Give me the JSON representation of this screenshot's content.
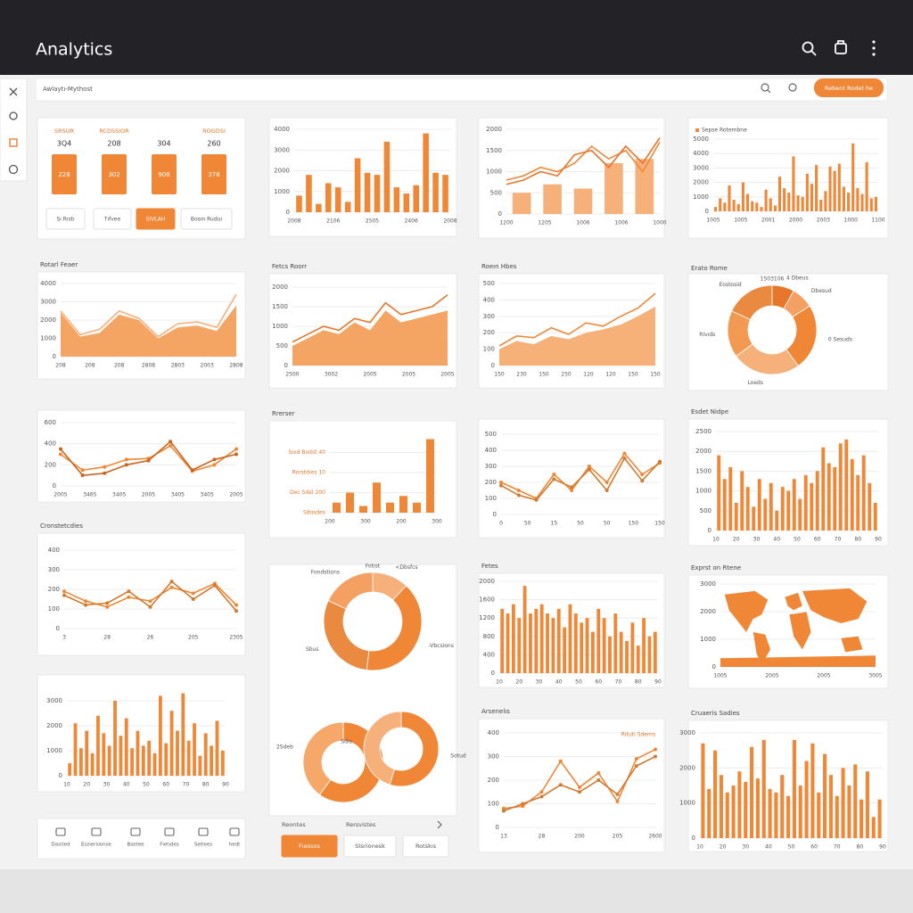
{
  "header": {
    "title": "Analytics"
  },
  "toolbar": {
    "label": "Awlaytı-Mythost",
    "button": "Rebent Rodet he"
  },
  "kpi": {
    "tiles": [
      {
        "label": "SRSUR",
        "value": "3Q4",
        "tile": "228"
      },
      {
        "label": "RCDSSIOR",
        "value": "208",
        "tile": "302"
      },
      {
        "value": "304",
        "tile": "908"
      },
      {
        "label": "ROGDSI",
        "value": "260",
        "tile": "378"
      }
    ],
    "buttons": [
      "Sı Rıstı",
      "Tıfvee",
      "SIVLAH",
      "Bosın Ruduı"
    ]
  },
  "charts": [
    {
      "type": "bar",
      "ylim": [
        0,
        4000
      ],
      "yticks": [
        0,
        1000,
        2000,
        3000,
        4000
      ],
      "xlabels": [
        "2008",
        "2106",
        "2505",
        "2406",
        "2008"
      ],
      "series": [
        {
          "kind": "bar",
          "color": "#ef8737",
          "values": [
            800,
            1800,
            400,
            1400,
            1200,
            500,
            2600,
            1900,
            1800,
            3400,
            1200,
            900,
            1300,
            3800,
            1900,
            1800
          ]
        }
      ]
    },
    {
      "type": "combo",
      "ylim": [
        0,
        2000
      ],
      "yticks": [
        0,
        500,
        1000,
        1500,
        2000
      ],
      "xlabels": [
        "1200",
        "1205",
        "1006",
        "1006",
        "1000"
      ],
      "series": [
        {
          "kind": "bar",
          "color": "#f6b07a",
          "values": [
            500,
            700,
            600,
            1200,
            1300
          ]
        },
        {
          "kind": "line",
          "color": "#ef8737",
          "values": [
            800,
            900,
            1100,
            1000,
            1200,
            1600,
            1300,
            1500,
            1000,
            1700
          ]
        },
        {
          "kind": "line",
          "color": "#e5762a",
          "values": [
            700,
            800,
            1000,
            900,
            1400,
            1500,
            1100,
            1600,
            1200,
            1800
          ]
        }
      ]
    },
    {
      "type": "bar",
      "legend": "Sepse Rotembne",
      "ylim": [
        0,
        5000
      ],
      "yticks": [
        0,
        1000,
        2000,
        3000,
        4000,
        5000
      ],
      "xlabels": [
        "1005",
        "1005",
        "2001",
        "2000",
        "2003",
        "1000",
        "1100"
      ],
      "series": [
        {
          "kind": "bar",
          "color": "#ef8737",
          "values": [
            300,
            900,
            600,
            1800,
            800,
            500,
            2000,
            1200,
            700,
            600,
            300,
            1500,
            900,
            400,
            2400,
            1600,
            1300,
            3800,
            1100,
            1000,
            2600,
            1900,
            3200,
            800,
            1400,
            3100,
            2800,
            3300,
            1700,
            1300,
            4700,
            1600,
            1200,
            3400,
            900,
            1000
          ]
        }
      ]
    },
    {
      "type": "area",
      "title": "Rotarl Feaer",
      "ylim": [
        0,
        4000
      ],
      "yticks": [
        0,
        1000,
        2000,
        3000,
        4000
      ],
      "xlabels": [
        "208",
        "208",
        "208",
        "2808",
        "2803",
        "2003",
        "2808"
      ],
      "series": [
        {
          "kind": "area",
          "color": "#f39a52",
          "values": [
            2400,
            1100,
            1300,
            2300,
            2000,
            1000,
            1600,
            1700,
            1400,
            2800
          ]
        },
        {
          "kind": "line",
          "color": "#f6b07a",
          "values": [
            2500,
            1200,
            1500,
            2500,
            2100,
            1100,
            1800,
            1900,
            1600,
            3400
          ]
        }
      ]
    },
    {
      "type": "area",
      "title": "Fetcs Roorr",
      "ylim": [
        0,
        2000
      ],
      "yticks": [
        0,
        500,
        1000,
        1500,
        2000
      ],
      "xlabels": [
        "2500",
        "3002",
        "2005",
        "2005",
        "2005"
      ],
      "series": [
        {
          "kind": "area",
          "color": "#f39a52",
          "values": [
            500,
            700,
            900,
            800,
            1100,
            900,
            1400,
            1100,
            1200,
            1300,
            1400
          ]
        },
        {
          "kind": "line",
          "color": "#e5762a",
          "values": [
            600,
            800,
            1000,
            900,
            1200,
            1100,
            1600,
            1300,
            1400,
            1500,
            1800
          ]
        }
      ]
    },
    {
      "type": "area",
      "title": "Roeın Hbes",
      "ylim": [
        0,
        500
      ],
      "yticks": [
        0,
        100,
        200,
        300,
        400,
        500
      ],
      "xlabels": [
        "150",
        "230",
        "150",
        "250",
        "120",
        "120",
        "150",
        "150"
      ],
      "series": [
        {
          "kind": "area",
          "color": "#f5a86a",
          "values": [
            100,
            150,
            130,
            180,
            160,
            200,
            220,
            250,
            300,
            360
          ]
        },
        {
          "kind": "line",
          "color": "#ef8737",
          "values": [
            120,
            180,
            170,
            230,
            190,
            260,
            240,
            300,
            350,
            440
          ]
        }
      ]
    },
    {
      "type": "line",
      "ylim": [
        0,
        600
      ],
      "yticks": [
        0,
        200,
        400,
        600
      ],
      "xlabels": [
        "2005",
        "3465",
        "3405",
        "2005",
        "3405",
        "3405",
        "2005"
      ],
      "series": [
        {
          "kind": "line",
          "markers": true,
          "color": "#ef8737",
          "values": [
            300,
            150,
            180,
            250,
            260,
            380,
            140,
            200,
            350
          ]
        },
        {
          "kind": "line",
          "markers": true,
          "color": "#c8661f",
          "values": [
            350,
            100,
            120,
            200,
            240,
            420,
            150,
            250,
            300
          ]
        }
      ]
    },
    {
      "type": "line",
      "ylim": [
        0,
        500
      ],
      "yticks": [
        0,
        100,
        200,
        300,
        400,
        500
      ],
      "xlabels": [
        "0",
        "50",
        "15",
        "50",
        "50",
        "150",
        "150"
      ],
      "series": [
        {
          "kind": "line",
          "markers": true,
          "color": "#ef8737",
          "values": [
            200,
            150,
            100,
            250,
            150,
            300,
            200,
            380,
            250,
            320
          ]
        },
        {
          "kind": "line",
          "markers": true,
          "color": "#d27a30",
          "values": [
            180,
            120,
            90,
            220,
            170,
            280,
            150,
            350,
            210,
            330
          ]
        }
      ]
    },
    {
      "type": "bar",
      "title": "Rrerser",
      "ylim": [
        0,
        2400
      ],
      "yticks": [
        {
          "value": 0,
          "label": "Sdosdes"
        },
        {
          "value": 600,
          "label": "Dec Sdst 200"
        },
        {
          "value": 1200,
          "label": "Rorstdıes 10"
        },
        {
          "value": 1800,
          "label": "Soıd Bodst 40"
        }
      ],
      "xlabels": [
        "200",
        "300",
        "200",
        "300"
      ],
      "series": [
        {
          "kind": "bar",
          "color": "#ef8737",
          "values": [
            300,
            600,
            200,
            900,
            300,
            500,
            300,
            2200
          ]
        }
      ]
    },
    {
      "type": "bar",
      "title": "Fetes",
      "ylim": [
        0,
        2000
      ],
      "yticks": [
        0,
        400,
        800,
        1200,
        1600,
        2000
      ],
      "xlabels": [
        "10",
        "20",
        "30",
        "40",
        "50",
        "60",
        "70",
        "80",
        "90"
      ],
      "series": [
        {
          "kind": "bar",
          "color": "#ef8737",
          "values": [
            1400,
            1300,
            1500,
            1200,
            1900,
            1300,
            1400,
            1500,
            1300,
            1200,
            1400,
            1000,
            1500,
            1300,
            1100,
            1200,
            900,
            1400,
            1200,
            800,
            1300,
            900,
            700,
            1100,
            600,
            1200,
            800,
            900
          ]
        }
      ]
    },
    {
      "type": "line",
      "title": "Arsenelıs",
      "annotation": "Rituti Sdems",
      "ylim": [
        0,
        400
      ],
      "yticks": [
        0,
        100,
        200,
        300,
        400
      ],
      "xlabels": [
        "13",
        "28",
        "200",
        "205",
        "2600"
      ],
      "series": [
        {
          "kind": "line",
          "markers": true,
          "color": "#ef8737",
          "values": [
            80,
            90,
            150,
            280,
            170,
            230,
            110,
            290,
            330
          ]
        },
        {
          "kind": "line",
          "markers": true,
          "color": "#d27a30",
          "values": [
            70,
            100,
            130,
            180,
            150,
            200,
            140,
            260,
            300
          ]
        }
      ]
    },
    {
      "type": "bar",
      "title": "Esdet Nidpe",
      "ylim": [
        0,
        2500
      ],
      "yticks": [
        0,
        500,
        1000,
        1500,
        2000,
        2500
      ],
      "xlabels": [
        "10",
        "20",
        "30",
        "40",
        "50",
        "60",
        "70",
        "80",
        "90"
      ],
      "series": [
        {
          "kind": "bar",
          "color": "#ef8737",
          "values": [
            1900,
            1300,
            1600,
            700,
            1500,
            1100,
            600,
            1300,
            800,
            1200,
            500,
            1100,
            1000,
            1300,
            800,
            1400,
            1200,
            1500,
            2100,
            1700,
            1600,
            2200,
            2300,
            1800,
            1400,
            1900,
            1200,
            700
          ]
        }
      ]
    },
    {
      "type": "line",
      "title": "Cronstetcdies",
      "ylim": [
        0,
        400
      ],
      "yticks": [
        0,
        100,
        200,
        300,
        400
      ],
      "xlabels": [
        "3",
        "28",
        "26",
        "205",
        "2305"
      ],
      "series": [
        {
          "kind": "line",
          "markers": true,
          "color": "#ef8737",
          "values": [
            190,
            140,
            110,
            160,
            140,
            210,
            180,
            230,
            120
          ]
        },
        {
          "kind": "line",
          "markers": true,
          "color": "#d27a30",
          "values": [
            170,
            120,
            130,
            190,
            110,
            240,
            150,
            220,
            90
          ]
        }
      ]
    },
    {
      "type": "bar",
      "ylim": [
        0,
        3500
      ],
      "yticks": [
        0,
        1000,
        2000,
        3000
      ],
      "xlabels": [
        "10",
        "20",
        "30",
        "40",
        "50",
        "60",
        "70",
        "80",
        "90"
      ],
      "series": [
        {
          "kind": "bar",
          "color": "#ef8737",
          "values": [
            500,
            2100,
            1100,
            1800,
            900,
            2400,
            1700,
            1200,
            3000,
            1600,
            2300,
            1100,
            1800,
            1200,
            1400,
            900,
            3200,
            1300,
            2600,
            1800,
            3300,
            1400,
            2100,
            800,
            1700,
            1200,
            2200,
            1000
          ]
        }
      ]
    },
    {
      "type": "bar",
      "title": "Cruaeris Sadies",
      "ylim": [
        0,
        3000
      ],
      "yticks": [
        0,
        1000,
        2000,
        3000
      ],
      "xlabels": [
        "10",
        "20",
        "30",
        "40",
        "50",
        "60",
        "70",
        "80",
        "90"
      ],
      "series": [
        {
          "kind": "bar",
          "color": "#ef8737",
          "values": [
            2700,
            1400,
            2500,
            1800,
            1300,
            1500,
            1900,
            1600,
            2600,
            1700,
            2800,
            1400,
            1300,
            1800,
            1200,
            2800,
            1500,
            2200,
            2700,
            1300,
            2400,
            1800,
            1200,
            2000,
            1500,
            2100,
            1100,
            1900,
            600,
            1100
          ]
        }
      ]
    },
    {
      "type": "map",
      "title": "Exprst on Rtene",
      "ylim": [
        0,
        3000
      ],
      "yticks": [
        0,
        1000,
        2000,
        3000
      ],
      "xlabels": [
        "1005",
        "2005",
        "2005",
        "3005"
      ],
      "series": []
    }
  ],
  "donut_cards": [
    {
      "title": "Erato Rome",
      "donuts": [
        {
          "title": "1503106",
          "values": [
            8,
            8,
            24,
            25,
            17,
            18
          ],
          "labels": [
            "4 Dbeus",
            "Dbesud",
            "0 Sesuds",
            "Loeds",
            "Rivıds",
            "Eostosid"
          ],
          "colors": [
            "#e5762a",
            "#f3a062",
            "#ef8737",
            "#f6b07a",
            "#f39a52",
            "#e98a40"
          ]
        }
      ]
    },
    {
      "donuts": [
        {
          "title": "Fotıst",
          "values": [
            12,
            40,
            30,
            18
          ],
          "labels": [
            "<Dbsfcs",
            "-Vbcsions",
            "Sbus",
            "Fondstions"
          ],
          "colors": [
            "#f6b07a",
            "#ef8737",
            "#e98a40",
            "#f3a062"
          ]
        },
        {
          "values": [
            60,
            40
          ],
          "labels": [
            "SDcsd",
            "2Sdeb"
          ],
          "colors": [
            "#ef8737",
            "#f5a86a"
          ]
        },
        {
          "values": [
            55,
            45
          ],
          "labels": [
            "Sotud",
            "Sdıs"
          ],
          "colors": [
            "#ef8737",
            "#f6b07a"
          ]
        }
      ]
    }
  ],
  "tabs": [
    "Reorıtes",
    "Rersvistes"
  ],
  "tab_buttons": [
    "Fıessos",
    "Stsrionesk",
    "Rotskıs"
  ],
  "footer_icons": [
    "Dasıted",
    "Eszıersionse",
    "Bsetee",
    "Fıetıdes",
    "Seitees",
    "hedt"
  ]
}
